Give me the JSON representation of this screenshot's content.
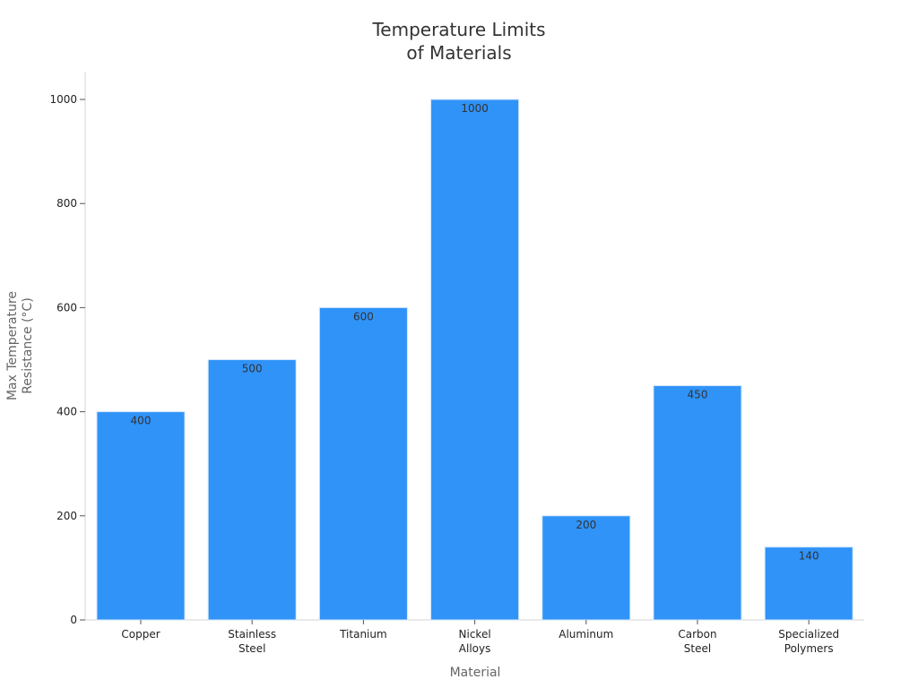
{
  "chart_data": {
    "type": "bar",
    "title": [
      "Temperature Limits",
      "of Materials"
    ],
    "xlabel": "Material",
    "ylabel": [
      "Max Temperature",
      "Resistance (°C)"
    ],
    "categories": [
      [
        "Copper"
      ],
      [
        "Stainless",
        "Steel"
      ],
      [
        "Titanium"
      ],
      [
        "Nickel",
        "Alloys"
      ],
      [
        "Aluminum"
      ],
      [
        "Carbon",
        "Steel"
      ],
      [
        "Specialized",
        "Polymers"
      ]
    ],
    "values": [
      400,
      500,
      600,
      1000,
      200,
      450,
      140
    ],
    "data_labels": [
      "400",
      "500",
      "600",
      "1000",
      "200",
      "450",
      "140"
    ],
    "yticks": [
      0,
      200,
      400,
      600,
      800,
      1000
    ],
    "ylim": [
      0,
      1050
    ],
    "grid": false,
    "bar_color": "#2f93f8"
  }
}
